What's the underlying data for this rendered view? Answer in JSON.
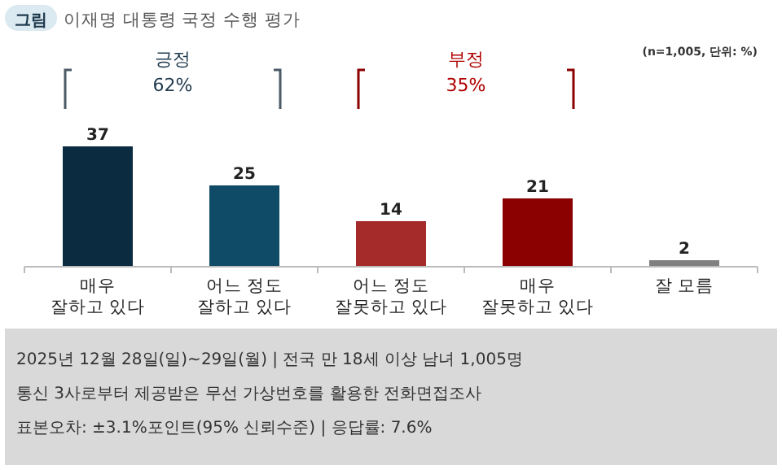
{
  "chart_data": {
    "type": "bar",
    "title": "이재명 대통령 국정 수행 평가",
    "categories": [
      "매우\n잘하고 있다",
      "어느 정도\n잘하고 있다",
      "어느 정도\n잘못하고 있다",
      "매우\n잘못하고 있다",
      "잘 모름"
    ],
    "values": [
      37,
      25,
      14,
      21,
      2
    ],
    "colors": [
      "#0b2c40",
      "#0f4a66",
      "#a52a2a",
      "#8b0000",
      "#808080"
    ],
    "data_labels": true,
    "annotations": [
      "그림",
      "긍정",
      "62%",
      "부정",
      "35%",
      "(n=1,005, 단위: %)",
      "2025년 12월 28일(일)~29일(월) | 전국 만 18세 이상 남녀 1,005명",
      "통신 3사로부터 제공받은 무선 가상번호를 활용한 전화면접조사",
      "표본오차: ±3.1%포인트(95% 신뢰수준) | 응답률: 7.6%"
    ]
  }
}
